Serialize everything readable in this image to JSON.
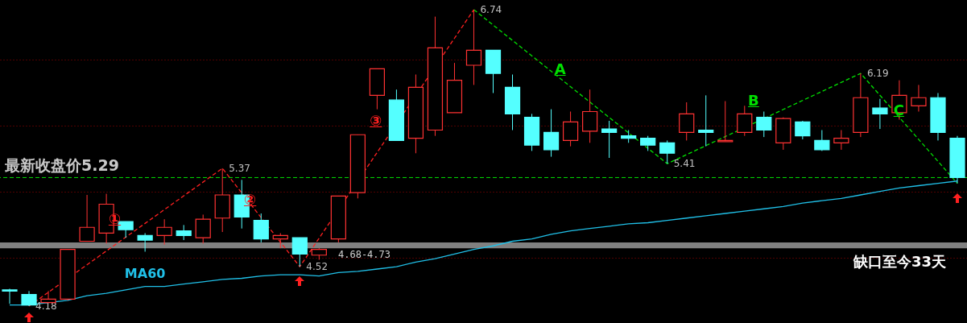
{
  "chart_data": {
    "type": "candlestick",
    "categories": [
      null,
      null,
      null,
      null,
      null,
      null,
      null,
      null,
      null,
      null,
      null,
      null,
      null,
      null,
      null,
      null,
      null,
      null,
      null,
      null,
      null,
      null,
      null,
      null,
      null,
      null,
      null,
      null,
      null,
      null,
      null,
      null,
      null,
      null,
      null,
      null,
      null,
      null,
      null,
      null,
      null,
      null,
      null,
      null,
      null,
      null,
      null,
      null,
      null,
      null
    ],
    "ohlc": [
      [
        4.32,
        4.33,
        4.2,
        4.31
      ],
      [
        4.28,
        4.31,
        4.18,
        4.19
      ],
      [
        4.21,
        4.31,
        4.21,
        4.24
      ],
      [
        4.24,
        4.67,
        4.23,
        4.67
      ],
      [
        4.74,
        5.14,
        4.74,
        4.86
      ],
      [
        4.81,
        5.15,
        4.72,
        5.06
      ],
      [
        4.91,
        4.91,
        4.77,
        4.84
      ],
      [
        4.79,
        4.81,
        4.65,
        4.75
      ],
      [
        4.79,
        4.93,
        4.71,
        4.86
      ],
      [
        4.83,
        4.88,
        4.75,
        4.79
      ],
      [
        4.77,
        4.97,
        4.72,
        4.93
      ],
      [
        4.94,
        5.37,
        4.82,
        5.14
      ],
      [
        5.14,
        5.27,
        4.85,
        4.95
      ],
      [
        4.92,
        4.98,
        4.73,
        4.76
      ],
      [
        4.76,
        4.81,
        4.68,
        4.79
      ],
      [
        4.77,
        4.77,
        4.52,
        4.63
      ],
      [
        4.62,
        4.68,
        4.58,
        4.67
      ],
      [
        4.76,
        5.13,
        4.73,
        5.13
      ],
      [
        5.16,
        5.66,
        5.11,
        5.66
      ],
      [
        6.0,
        6.23,
        5.88,
        6.23
      ],
      [
        5.96,
        6.05,
        5.61,
        5.61
      ],
      [
        5.63,
        6.18,
        5.5,
        6.07
      ],
      [
        5.7,
        6.68,
        5.65,
        6.41
      ],
      [
        5.85,
        6.28,
        5.85,
        6.13
      ],
      [
        6.26,
        6.74,
        6.09,
        6.39
      ],
      [
        6.39,
        6.39,
        6.02,
        6.19
      ],
      [
        6.07,
        6.18,
        5.7,
        5.84
      ],
      [
        5.81,
        5.84,
        5.52,
        5.57
      ],
      [
        5.68,
        5.88,
        5.47,
        5.53
      ],
      [
        5.61,
        5.86,
        5.56,
        5.77
      ],
      [
        5.69,
        6.05,
        5.59,
        5.86
      ],
      [
        5.71,
        5.78,
        5.46,
        5.68
      ],
      [
        5.65,
        5.7,
        5.59,
        5.63
      ],
      [
        5.63,
        5.65,
        5.52,
        5.57
      ],
      [
        5.59,
        5.61,
        5.41,
        5.5
      ],
      [
        5.68,
        5.94,
        5.61,
        5.84
      ],
      [
        5.7,
        6.0,
        5.56,
        5.68
      ],
      [
        5.6,
        5.95,
        5.6,
        5.61
      ],
      [
        5.68,
        5.91,
        5.65,
        5.84
      ],
      [
        5.81,
        5.86,
        5.64,
        5.7
      ],
      [
        5.59,
        5.81,
        5.53,
        5.8
      ],
      [
        5.77,
        5.78,
        5.62,
        5.65
      ],
      [
        5.61,
        5.7,
        5.52,
        5.53
      ],
      [
        5.59,
        5.7,
        5.53,
        5.63
      ],
      [
        5.68,
        6.19,
        5.64,
        5.98
      ],
      [
        5.89,
        5.97,
        5.71,
        5.84
      ],
      [
        5.85,
        6.13,
        5.79,
        6.0
      ],
      [
        5.91,
        6.09,
        5.86,
        5.98
      ],
      [
        5.98,
        6.02,
        5.61,
        5.68
      ],
      [
        5.63,
        5.65,
        5.24,
        5.29
      ]
    ],
    "colors": [
      "#54ffff",
      "#54ffff",
      "#ff3232",
      "#ff3232",
      "#ff3232",
      "#ff3232",
      "#54ffff",
      "#54ffff",
      "#ff3232",
      "#54ffff",
      "#ff3232",
      "#ff3232",
      "#54ffff",
      "#54ffff",
      "#ff3232",
      "#54ffff",
      "#ff3232",
      "#ff3232",
      "#ff3232",
      "#ff3232",
      "#54ffff",
      "#ff3232",
      "#ff3232",
      "#ff3232",
      "#ff3232",
      "#54ffff",
      "#54ffff",
      "#54ffff",
      "#54ffff",
      "#ff3232",
      "#ff3232",
      "#54ffff",
      "#54ffff",
      "#54ffff",
      "#54ffff",
      "#ff3232",
      "#54ffff",
      "#ff3232",
      "#ff3232",
      "#54ffff",
      "#ff3232",
      "#54ffff",
      "#54ffff",
      "#ff3232",
      "#ff3232",
      "#54ffff",
      "#ff3232",
      "#ff3232",
      "#54ffff",
      "#54ffff"
    ],
    "series": [
      {
        "name": "MA60",
        "type": "line",
        "color": "#20c0e8",
        "values": [
          4.19,
          4.19,
          4.21,
          4.23,
          4.27,
          4.29,
          4.32,
          4.35,
          4.35,
          4.37,
          4.39,
          4.41,
          4.42,
          4.44,
          4.45,
          4.45,
          4.44,
          4.47,
          4.48,
          4.5,
          4.52,
          4.56,
          4.59,
          4.63,
          4.67,
          4.7,
          4.74,
          4.76,
          4.8,
          4.83,
          4.85,
          4.87,
          4.89,
          4.9,
          4.92,
          4.94,
          4.96,
          4.98,
          5.0,
          5.02,
          5.04,
          5.07,
          5.09,
          5.11,
          5.14,
          5.17,
          5.2,
          5.22,
          5.24,
          5.26
        ]
      },
      {
        "type": "line",
        "color": "#ff2020",
        "line_style": "dashed",
        "values": [
          null,
          4.18,
          null,
          null,
          null,
          null,
          null,
          null,
          null,
          null,
          null,
          5.37,
          null,
          null,
          null,
          4.52,
          null,
          null,
          null,
          null,
          null,
          null,
          null,
          null,
          6.74,
          null,
          null,
          null,
          null,
          null,
          null,
          null,
          null,
          null,
          null,
          null,
          null,
          null,
          null,
          null,
          null,
          null,
          null,
          null,
          null,
          null,
          null,
          null,
          null,
          null
        ],
        "value_labels": [
          null,
          "4.18",
          null,
          null,
          null,
          null,
          null,
          null,
          null,
          null,
          null,
          "5.37",
          null,
          null,
          null,
          "4.52",
          null,
          null,
          null,
          null,
          null,
          null,
          null,
          null,
          "6.74",
          null,
          null,
          null,
          null,
          null,
          null,
          null,
          null,
          null,
          null,
          null,
          null,
          null,
          null,
          null,
          null,
          null,
          null,
          null,
          null,
          null,
          null,
          null,
          null,
          null
        ]
      },
      {
        "type": "line",
        "color": "#00e000",
        "line_style": "dashed",
        "values": [
          null,
          null,
          null,
          null,
          null,
          null,
          null,
          null,
          null,
          null,
          null,
          null,
          null,
          null,
          null,
          null,
          null,
          null,
          null,
          null,
          null,
          null,
          null,
          null,
          6.74,
          null,
          null,
          null,
          null,
          null,
          null,
          null,
          null,
          null,
          5.41,
          null,
          null,
          null,
          null,
          null,
          null,
          null,
          null,
          null,
          6.19,
          null,
          null,
          null,
          null,
          5.24
        ],
        "value_labels": [
          null,
          null,
          null,
          null,
          null,
          null,
          null,
          null,
          null,
          null,
          null,
          null,
          null,
          null,
          null,
          null,
          null,
          null,
          null,
          null,
          null,
          null,
          null,
          null,
          null,
          null,
          null,
          null,
          null,
          null,
          null,
          null,
          null,
          null,
          "5.41",
          null,
          null,
          null,
          null,
          null,
          null,
          null,
          null,
          null,
          "6.19",
          null,
          null,
          null,
          null,
          null
        ]
      }
    ],
    "yticks": [
      {
        "value": 4.6,
        "label": null
      },
      {
        "value": 5.17,
        "label": null
      },
      {
        "value": 5.74,
        "label": null
      },
      {
        "value": 6.31,
        "label": null
      }
    ],
    "grid": "y",
    "tick_labels": false,
    "ref_lines": [
      {
        "axis": "y",
        "value": 5.29,
        "label": "最新收盘价5.29",
        "color": "#00e000",
        "line_style": "dashed"
      }
    ],
    "bands": [
      {
        "axis": "y",
        "from": 4.68,
        "to": 4.73,
        "label": "4.68-4.73",
        "color": "#808080"
      }
    ],
    "annotations": [
      "①",
      "②",
      "③",
      "A",
      "B",
      "C",
      "缺口至今33天"
    ]
  }
}
